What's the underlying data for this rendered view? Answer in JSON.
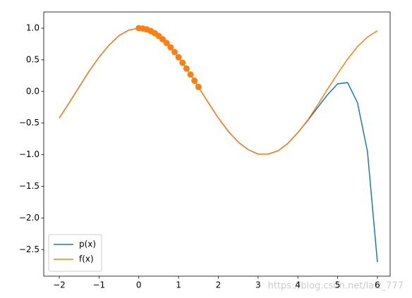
{
  "chart_data": {
    "type": "line",
    "x": [
      -2,
      -1.75,
      -1.5,
      -1.25,
      -1,
      -0.75,
      -0.5,
      -0.25,
      0,
      0.25,
      0.5,
      0.75,
      1,
      1.25,
      1.5,
      1.75,
      2,
      2.25,
      2.5,
      2.75,
      3,
      3.25,
      3.5,
      3.75,
      4,
      4.25,
      4.5,
      4.75,
      5,
      5.25,
      5.5,
      5.75,
      6
    ],
    "series": [
      {
        "name": "p(x)",
        "color": "#1f77b4",
        "values": [
          -0.42,
          -0.18,
          0.07,
          0.32,
          0.54,
          0.73,
          0.88,
          0.97,
          1,
          0.97,
          0.88,
          0.73,
          0.54,
          0.32,
          0.07,
          -0.18,
          -0.42,
          -0.63,
          -0.8,
          -0.92,
          -0.99,
          -0.99,
          -0.94,
          -0.82,
          -0.65,
          -0.46,
          -0.25,
          -0.05,
          0.12,
          0.14,
          -0.18,
          -0.95,
          -2.7
        ]
      },
      {
        "name": "f(x)",
        "color": "#ff7f0e",
        "values": [
          -0.42,
          -0.18,
          0.07,
          0.32,
          0.54,
          0.73,
          0.88,
          0.97,
          1,
          0.97,
          0.88,
          0.73,
          0.54,
          0.32,
          0.07,
          -0.18,
          -0.42,
          -0.63,
          -0.8,
          -0.92,
          -0.99,
          -0.99,
          -0.94,
          -0.82,
          -0.65,
          -0.45,
          -0.21,
          0.04,
          0.28,
          0.51,
          0.71,
          0.86,
          0.96
        ]
      }
    ],
    "scatter": {
      "color": "#ff7f0e",
      "x": [
        0,
        0.1,
        0.2,
        0.3,
        0.4,
        0.5,
        0.6,
        0.7,
        0.8,
        0.9,
        1.0,
        1.1,
        1.2,
        1.3,
        1.4,
        1.5
      ],
      "values": [
        1,
        0.995,
        0.98,
        0.955,
        0.921,
        0.878,
        0.825,
        0.765,
        0.697,
        0.622,
        0.54,
        0.454,
        0.362,
        0.267,
        0.17,
        0.071
      ]
    },
    "xlim": [
      -2.39,
      6.32
    ],
    "ylim": [
      -2.92,
      1.256
    ],
    "xticks": [
      {
        "value": -2,
        "label": "−2"
      },
      {
        "value": -1,
        "label": "−1"
      },
      0,
      1,
      2,
      3,
      4,
      5,
      6
    ],
    "yticks": [
      {
        "value": 1,
        "label": "1.0"
      },
      {
        "value": 0.5,
        "label": "0.5"
      },
      {
        "value": 0,
        "label": "0.0"
      },
      {
        "value": -0.5,
        "label": "−0.5"
      },
      {
        "value": -1,
        "label": "−1.0"
      },
      {
        "value": -1.5,
        "label": "−1.5"
      },
      {
        "value": -2,
        "label": "−2.0"
      },
      {
        "value": -2.5,
        "label": "−2.5"
      }
    ],
    "legend": "lower left",
    "annotation": "https://blog.csdn.net/lalz_777"
  }
}
